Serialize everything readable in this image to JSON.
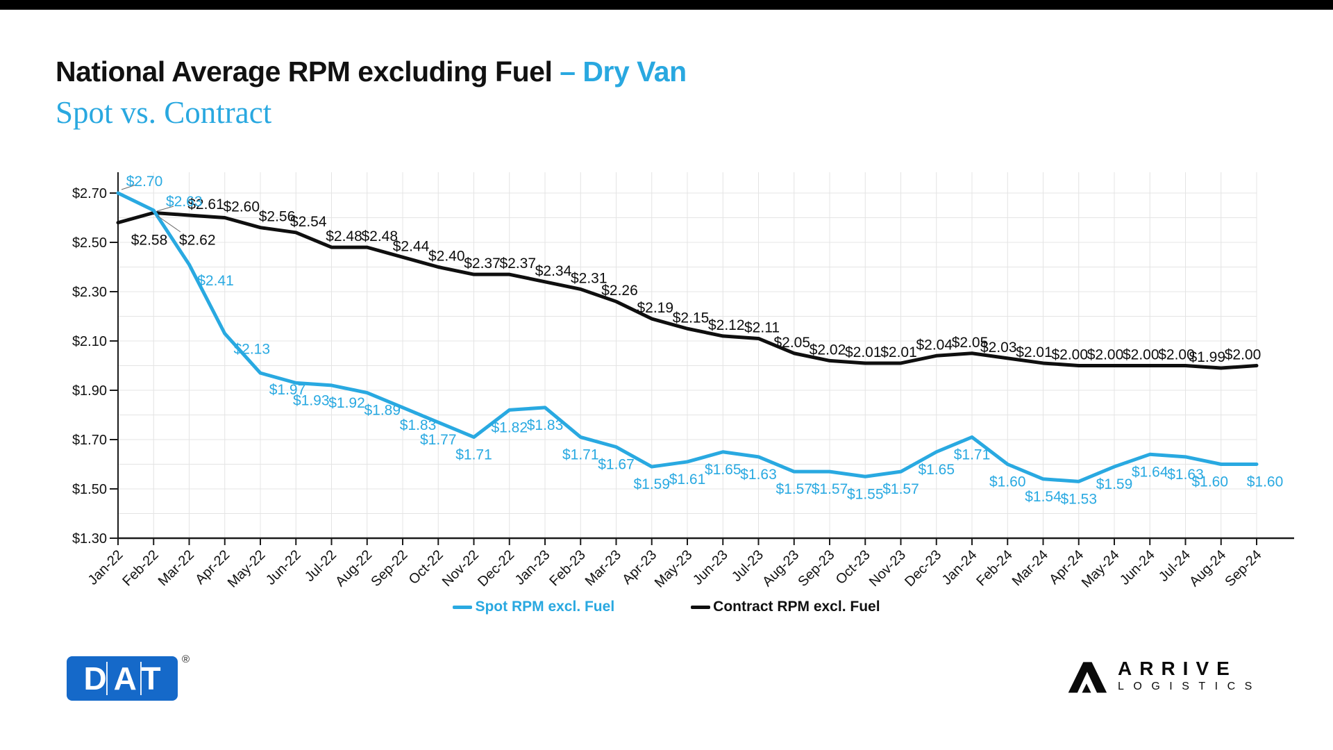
{
  "page": {
    "title_black": "National Average RPM excluding Fuel ",
    "title_blue": "– Dry Van",
    "subtitle": "Spot vs. Contract"
  },
  "colors": {
    "spot": "#29A9E1",
    "contract": "#0F0F0F",
    "accent_blue": "#29A8E0",
    "dat_blue": "#1569C9",
    "grid": "#E4E4E4",
    "axis": "#1A1A1A"
  },
  "chart_data": {
    "type": "line",
    "title": "National Average RPM excluding Fuel – Dry Van",
    "subtitle": "Spot vs. Contract",
    "categories": [
      "Jan-22",
      "Feb-22",
      "Mar-22",
      "Apr-22",
      "May-22",
      "Jun-22",
      "Jul-22",
      "Aug-22",
      "Sep-22",
      "Oct-22",
      "Nov-22",
      "Dec-22",
      "Jan-23",
      "Feb-23",
      "Mar-23",
      "Apr-23",
      "May-23",
      "Jun-23",
      "Jul-23",
      "Aug-23",
      "Sep-23",
      "Oct-23",
      "Nov-23",
      "Dec-23",
      "Jan-24",
      "Feb-24",
      "Mar-24",
      "Apr-24",
      "May-24",
      "Jun-24",
      "Jul-24",
      "Aug-24",
      "Sep-24"
    ],
    "series": [
      {
        "name": "Spot RPM excl. Fuel",
        "color": "#29A9E1",
        "values": [
          2.7,
          2.63,
          2.41,
          2.13,
          1.97,
          1.93,
          1.92,
          1.89,
          1.83,
          1.77,
          1.71,
          1.82,
          1.83,
          1.71,
          1.67,
          1.59,
          1.61,
          1.65,
          1.63,
          1.57,
          1.57,
          1.55,
          1.57,
          1.65,
          1.71,
          1.6,
          1.54,
          1.53,
          1.59,
          1.64,
          1.63,
          1.6,
          1.6
        ]
      },
      {
        "name": "Contract RPM excl. Fuel",
        "color": "#0F0F0F",
        "values": [
          2.58,
          2.62,
          2.61,
          2.6,
          2.56,
          2.54,
          2.48,
          2.48,
          2.44,
          2.4,
          2.37,
          2.37,
          2.34,
          2.31,
          2.26,
          2.19,
          2.15,
          2.12,
          2.11,
          2.05,
          2.02,
          2.01,
          2.01,
          2.04,
          2.05,
          2.03,
          2.01,
          2.0,
          2.0,
          2.0,
          2.0,
          1.99,
          2.0
        ]
      }
    ],
    "y_ticks": [
      2.7,
      2.5,
      2.3,
      2.1,
      1.9,
      1.7,
      1.5,
      1.3
    ],
    "ylim": [
      1.3,
      2.79
    ],
    "value_prefix": "$",
    "grid": true,
    "legend_position": "bottom"
  },
  "legend": {
    "spot_label": "Spot RPM excl. Fuel",
    "contract_label": "Contract RPM excl. Fuel"
  },
  "footer": {
    "dat_text": "DAT",
    "dat_registered": "®",
    "arrive_line1": "ARRIVE",
    "arrive_line2": "LOGISTICS"
  }
}
